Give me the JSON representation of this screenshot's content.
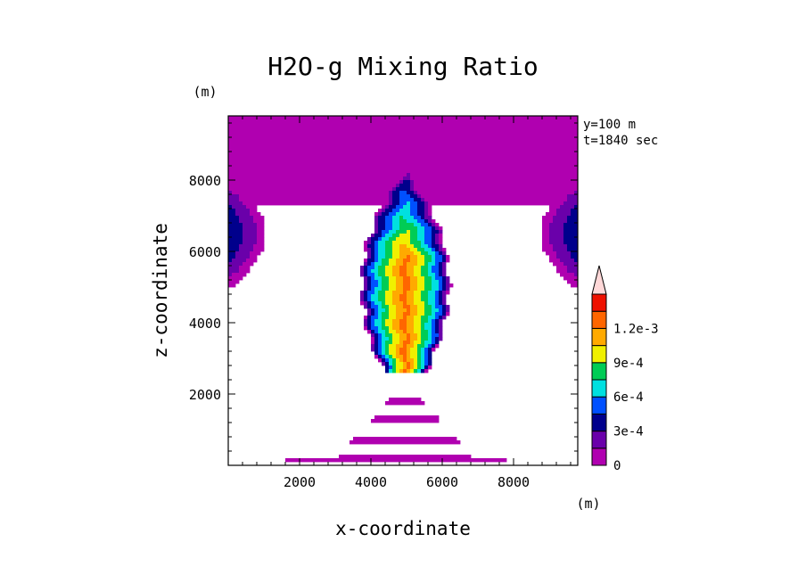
{
  "chart_data": {
    "type": "heatmap",
    "title": "H2O-g Mixing Ratio",
    "xlabel": "x-coordinate",
    "ylabel": "z-coordinate",
    "x_unit": "(m)",
    "y_unit": "(m)",
    "xlim": [
      0,
      9800
    ],
    "ylim": [
      0,
      9800
    ],
    "x_ticks": [
      2000,
      4000,
      6000,
      8000
    ],
    "y_ticks": [
      2000,
      4000,
      6000,
      8000
    ],
    "x_tick_labels": [
      "2000",
      "4000",
      "6000",
      "8000"
    ],
    "y_tick_labels": [
      "2000",
      "4000",
      "6000",
      "8000"
    ],
    "annotations": [
      "y=100 m",
      "t=1840 sec"
    ],
    "colorbar": {
      "levels": [
        0,
        0.00015,
        0.0003,
        0.00045,
        0.0006,
        0.00075,
        0.0009,
        0.00105,
        0.0012,
        0.00135
      ],
      "tick_values": [
        0,
        0.0003,
        0.0006,
        0.0009,
        0.0012
      ],
      "tick_labels": [
        "0",
        "3e-4",
        "6e-4",
        "9e-4",
        "1.2e-3"
      ],
      "colors": [
        "#b000b0",
        "#6a00aa",
        "#00008c",
        "#0050ff",
        "#00e0e0",
        "#00cc55",
        "#f0f000",
        "#ffaa00",
        "#ff6600",
        "#ee1100",
        "#ffd8d8"
      ],
      "extend": "max"
    },
    "fields": {
      "upper_layer": {
        "z_bottom": 7300,
        "value": 0.0001
      },
      "central_column": {
        "x_center": 4960,
        "z_bottom": 2600,
        "z_top": 8400,
        "peak": 0.00125
      },
      "side_columns": {
        "z_range": [
          5000,
          8000
        ],
        "peak": 0.0004
      },
      "lower_bands": {
        "z_range": [
          100,
          1900
        ],
        "value": 0.0001
      }
    }
  }
}
